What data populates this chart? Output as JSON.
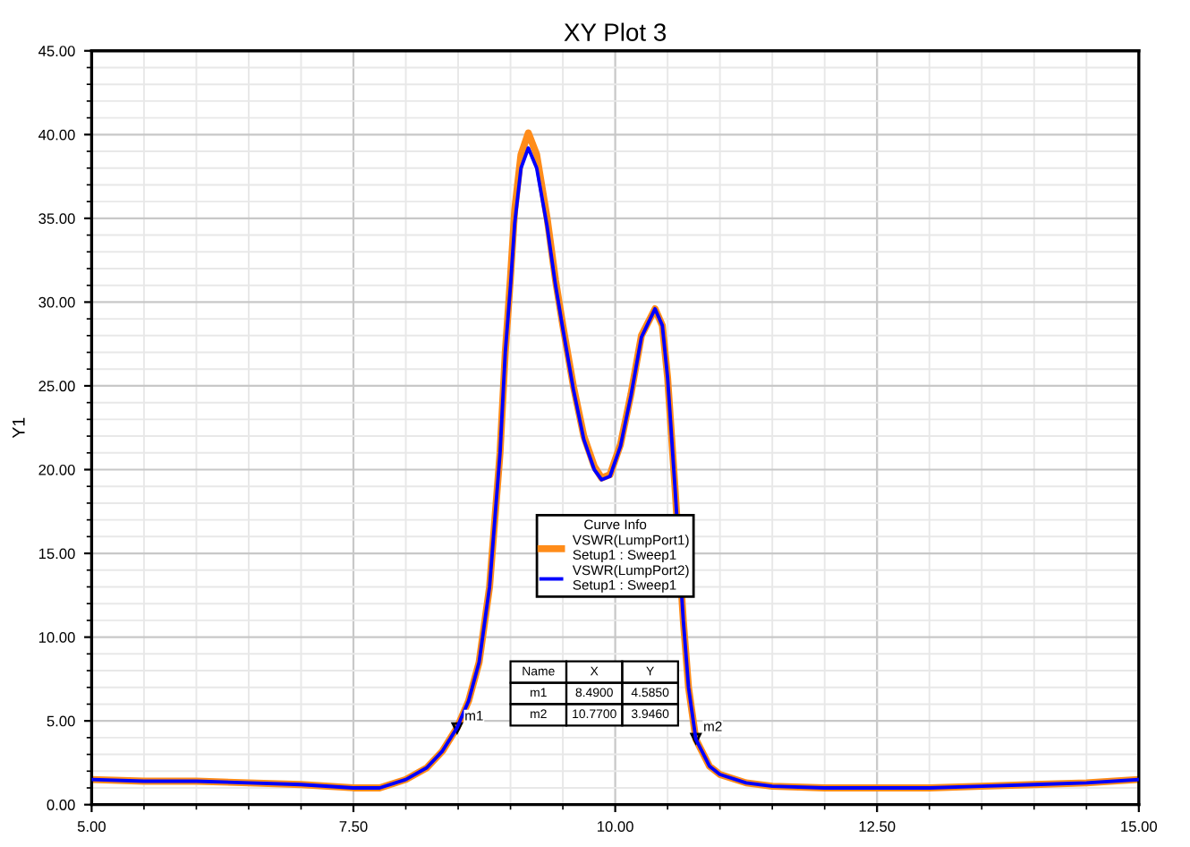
{
  "chart_data": {
    "type": "line",
    "title": "XY Plot 3",
    "ylabel": "Y1",
    "legend_title": "Curve Info",
    "legend": "center",
    "grid": true,
    "marker": "none",
    "line_style": "solid",
    "xlim": [
      5,
      15
    ],
    "ylim": [
      0,
      45
    ],
    "xticks": [
      {
        "value": 5,
        "label": "5.00"
      },
      {
        "value": 7.5,
        "label": "7.50"
      },
      {
        "value": 10,
        "label": "10.00"
      },
      {
        "value": 12.5,
        "label": "12.50"
      },
      {
        "value": 15,
        "label": "15.00"
      }
    ],
    "yticks": [
      {
        "value": 0,
        "label": "0.00"
      },
      {
        "value": 5,
        "label": "5.00"
      },
      {
        "value": 10,
        "label": "10.00"
      },
      {
        "value": 15,
        "label": "15.00"
      },
      {
        "value": 20,
        "label": "20.00"
      },
      {
        "value": 25,
        "label": "25.00"
      },
      {
        "value": 30,
        "label": "30.00"
      },
      {
        "value": 35,
        "label": "35.00"
      },
      {
        "value": 40,
        "label": "40.00"
      },
      {
        "value": 45,
        "label": "45.00"
      }
    ],
    "x": [
      5,
      5.5,
      6,
      6.5,
      7,
      7.5,
      7.75,
      8,
      8.2,
      8.35,
      8.49,
      8.6,
      8.7,
      8.8,
      8.9,
      8.95,
      9,
      9.04,
      9.1,
      9.17,
      9.25,
      9.35,
      9.43,
      9.5,
      9.6,
      9.7,
      9.8,
      9.87,
      9.95,
      10.05,
      10.15,
      10.25,
      10.38,
      10.45,
      10.5,
      10.57,
      10.65,
      10.7,
      10.77,
      10.9,
      11,
      11.25,
      11.5,
      12,
      12.5,
      13,
      13.5,
      14,
      14.5,
      15
    ],
    "series": [
      {
        "name": "VSWR(LumpPort1)\nSetup1 : Sweep1",
        "color": "#ff8c1a",
        "values": [
          1.5,
          1.4,
          1.4,
          1.3,
          1.2,
          1.0,
          1.0,
          1.5,
          2.2,
          3.2,
          4.6,
          6.2,
          8.5,
          13,
          21,
          27,
          31.5,
          35.5,
          38.8,
          40.1,
          38.8,
          35,
          31.3,
          28.6,
          25,
          22,
          20.2,
          19.5,
          19.7,
          21.5,
          24.5,
          28,
          29.6,
          28.6,
          25.5,
          19,
          11,
          7,
          3.9,
          2.3,
          1.8,
          1.3,
          1.1,
          1.0,
          1.0,
          1.0,
          1.1,
          1.2,
          1.3,
          1.5
        ]
      },
      {
        "name": "VSWR(LumpPort2)\nSetup1 : Sweep1",
        "color": "#0000ff",
        "values": [
          1.5,
          1.4,
          1.4,
          1.3,
          1.2,
          1.0,
          1.0,
          1.5,
          2.2,
          3.2,
          4.6,
          6.2,
          8.5,
          13,
          21,
          27,
          31,
          34.7,
          38.0,
          39.2,
          38.0,
          34.5,
          31.0,
          28.4,
          24.8,
          21.8,
          20.0,
          19.4,
          19.6,
          21.4,
          24.4,
          27.9,
          29.6,
          28.6,
          25.5,
          19,
          11,
          7,
          3.9,
          2.3,
          1.8,
          1.3,
          1.1,
          1.0,
          1.0,
          1.0,
          1.1,
          1.2,
          1.3,
          1.5
        ]
      }
    ],
    "annotations": [
      {
        "text": "m1",
        "x": 8.49,
        "y": 4.585
      },
      {
        "text": "m2",
        "x": 10.77,
        "y": 3.946
      },
      "Name",
      "X",
      "Y",
      "m1",
      "8.4900",
      "4.5850",
      "m2",
      "10.7700",
      "3.9460"
    ]
  }
}
